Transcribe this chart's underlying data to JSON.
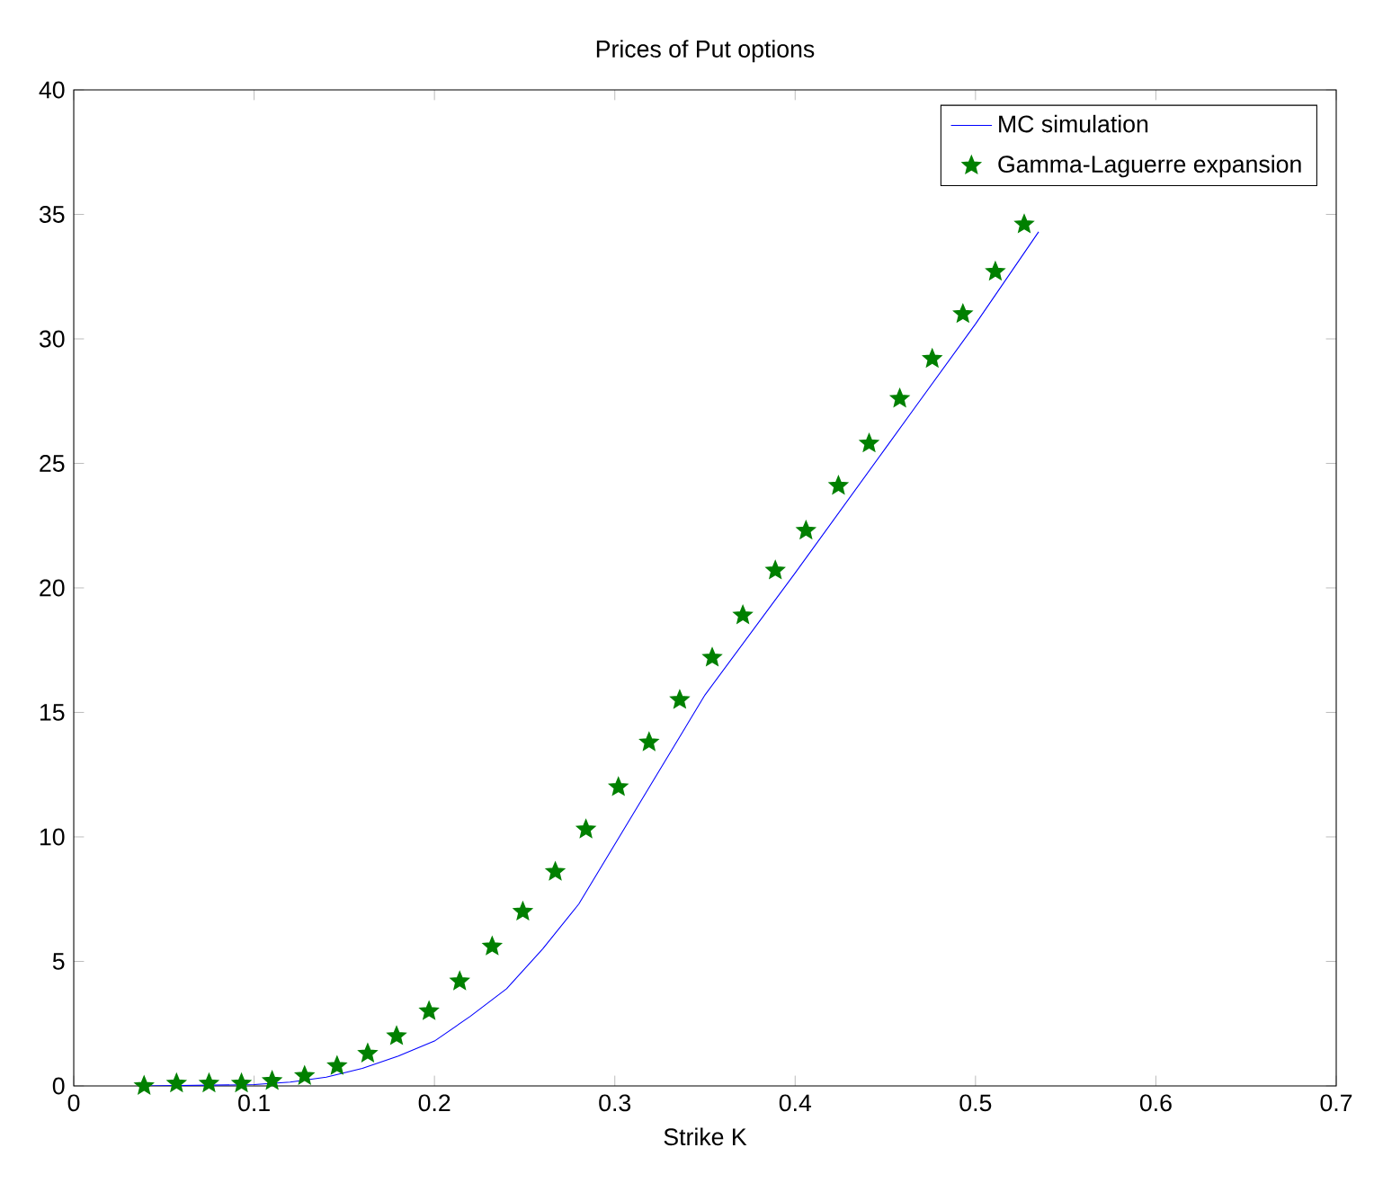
{
  "chart_data": {
    "type": "line",
    "title": "Prices of Put options",
    "xlabel": "Strike K",
    "xlim": [
      0,
      0.7
    ],
    "ylim": [
      0,
      40
    ],
    "xticks": [
      0,
      0.1,
      0.2,
      0.3,
      0.4,
      0.5,
      0.6,
      0.7
    ],
    "yticks": [
      0,
      5,
      10,
      15,
      20,
      25,
      30,
      35,
      40
    ],
    "legend": "top right",
    "series": [
      {
        "name": "MC simulation",
        "type": "line",
        "color": "#0000ff",
        "marker": "none",
        "x": [
          0.04,
          0.1,
          0.12,
          0.14,
          0.16,
          0.18,
          0.2,
          0.22,
          0.24,
          0.26,
          0.28,
          0.3,
          0.32,
          0.35,
          0.4,
          0.45,
          0.5,
          0.535
        ],
        "values": [
          0,
          0.05,
          0.15,
          0.35,
          0.7,
          1.2,
          1.8,
          2.8,
          3.9,
          5.5,
          7.3,
          9.7,
          12.1,
          15.7,
          20.6,
          25.6,
          30.6,
          34.3
        ]
      },
      {
        "name": "Gamma-Laguerre expansion",
        "type": "scatter",
        "color": "#008000",
        "marker": "star",
        "x": [
          0.039,
          0.057,
          0.075,
          0.093,
          0.11,
          0.128,
          0.146,
          0.163,
          0.179,
          0.197,
          0.214,
          0.232,
          0.249,
          0.267,
          0.284,
          0.302,
          0.319,
          0.336,
          0.354,
          0.371,
          0.389,
          0.406,
          0.424,
          0.441,
          0.458,
          0.476,
          0.493,
          0.511,
          0.527
        ],
        "values": [
          0,
          0.1,
          0.1,
          0.1,
          0.2,
          0.4,
          0.8,
          1.3,
          2.0,
          3.0,
          4.2,
          5.6,
          7.0,
          8.6,
          10.3,
          12.0,
          13.8,
          15.5,
          17.2,
          18.9,
          20.7,
          22.3,
          24.1,
          25.8,
          27.6,
          29.2,
          31.0,
          32.7,
          34.6
        ]
      }
    ]
  }
}
